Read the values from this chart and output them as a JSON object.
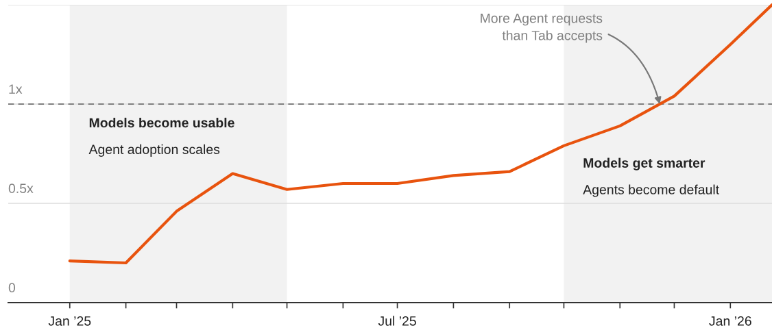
{
  "chart_data": {
    "type": "line",
    "x": [
      "2025-01",
      "2025-02",
      "2025-03",
      "2025-04",
      "2025-05",
      "2025-06",
      "2025-07",
      "2025-08",
      "2025-09",
      "2025-10",
      "2025-11",
      "2025-12",
      "2026-01",
      "2026-01-24"
    ],
    "series": [
      {
        "color": "#e8530e",
        "values": [
          0.21,
          0.2,
          0.46,
          0.65,
          0.57,
          0.6,
          0.6,
          0.64,
          0.66,
          0.79,
          0.89,
          1.04,
          1.3,
          1.5
        ]
      }
    ],
    "xlim": [
      "2024-11-28",
      "2026-01-24"
    ],
    "xticks": [
      {
        "value": "2025-01",
        "label": "Jan ’25"
      },
      {
        "value": "2025-02",
        "label": null
      },
      {
        "value": "2025-03",
        "label": null
      },
      {
        "value": "2025-04",
        "label": null
      },
      {
        "value": "2025-05",
        "label": null
      },
      {
        "value": "2025-06",
        "label": null
      },
      {
        "value": "2025-07",
        "label": "Jul ’25"
      },
      {
        "value": "2025-08",
        "label": null
      },
      {
        "value": "2025-09",
        "label": null
      },
      {
        "value": "2025-10",
        "label": null
      },
      {
        "value": "2025-11",
        "label": null
      },
      {
        "value": "2025-12",
        "label": null
      },
      {
        "value": "2026-01",
        "label": "Jan ’26"
      }
    ],
    "ylim": [
      0,
      1.5
    ],
    "yticks": [
      0,
      {
        "value": 0.5,
        "label": "0.5x"
      },
      {
        "value": 1,
        "label": "1x"
      },
      {
        "value": 1.5,
        "label": null
      }
    ],
    "grid": "y",
    "line_style": "solid",
    "marker": "none",
    "ref_lines": [
      {
        "axis": "y",
        "value": 1,
        "color": "#7f7f7f",
        "line_style": "dashed"
      }
    ],
    "bands": [
      {
        "axis": "x",
        "from": "2025-01",
        "to": "2025-05",
        "label": "Models become usable",
        "color": "#f2f2f2"
      },
      {
        "axis": "x",
        "from": "2025-10",
        "to": "2026-01-24",
        "label": "Models get smarter",
        "color": "#f2f2f2"
      }
    ],
    "annotations": [
      "Agent adoption scales",
      "Agents become default",
      {
        "text": "More Agent requests\nthan Tab accepts",
        "x": "2025-11-23",
        "y": 1
      }
    ]
  }
}
